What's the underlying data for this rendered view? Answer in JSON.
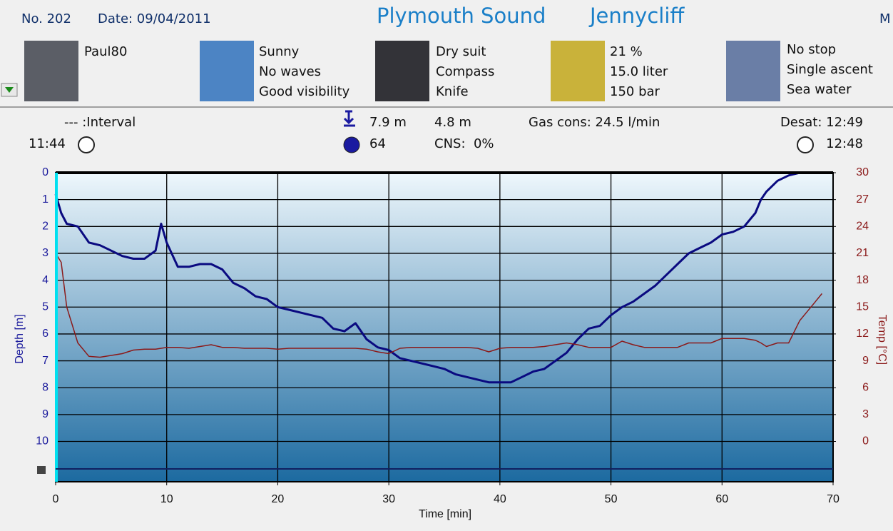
{
  "header": {
    "number": "No. 202",
    "date": "Date: 09/04/2011",
    "site": "Plymouth Sound",
    "location": "Jennycliff",
    "cut_text": "M"
  },
  "info": {
    "diver": [
      "Paul80"
    ],
    "conditions": [
      "Sunny",
      "No waves",
      "Good visibility"
    ],
    "equipment": [
      "Dry suit",
      "Compass",
      "Knife"
    ],
    "gas": [
      "21 %",
      "15.0 liter",
      "150 bar"
    ],
    "profile": [
      "No stop",
      "Single ascent",
      "Sea water"
    ]
  },
  "stats": {
    "interval": "--- :Interval",
    "entry_time": "11:44",
    "max_depth": "7.9 m",
    "duration": "64",
    "avg_depth": "4.8 m",
    "cns": "CNS:  0%",
    "gas_cons": "Gas cons: 24.5 l/min",
    "desat": "Desat: 12:49",
    "exit_time": "12:48"
  },
  "chart_data": {
    "type": "line",
    "xlabel": "Time [min]",
    "ylabel": "Depth [m]",
    "y2label": "Temp [°C]",
    "x": [
      0,
      0.5,
      1,
      2,
      3,
      4,
      5,
      6,
      7,
      8,
      9,
      9.5,
      10,
      11,
      12,
      13,
      14,
      15,
      16,
      17,
      18,
      19,
      20,
      21,
      22,
      23,
      24,
      25,
      26,
      27,
      28,
      29,
      30,
      31,
      32,
      33,
      34,
      35,
      36,
      37,
      38,
      39,
      40,
      41,
      42,
      43,
      44,
      45,
      46,
      47,
      48,
      49,
      50,
      51,
      52,
      53,
      54,
      55,
      56,
      57,
      58,
      59,
      60,
      61,
      62,
      63,
      63.5,
      64,
      65,
      66,
      67,
      68,
      69
    ],
    "series": [
      {
        "color": "#0a0a80",
        "values": [
          0.8,
          1.5,
          1.9,
          2.0,
          2.6,
          2.7,
          2.9,
          3.1,
          3.2,
          3.2,
          2.9,
          1.9,
          2.6,
          3.5,
          3.5,
          3.4,
          3.4,
          3.6,
          4.1,
          4.3,
          4.6,
          4.7,
          5.0,
          5.1,
          5.2,
          5.3,
          5.4,
          5.8,
          5.9,
          5.6,
          6.2,
          6.5,
          6.6,
          6.9,
          7.0,
          7.1,
          7.2,
          7.3,
          7.5,
          7.6,
          7.7,
          7.8,
          7.8,
          7.8,
          7.6,
          7.4,
          7.3,
          7.0,
          6.7,
          6.2,
          5.8,
          5.7,
          5.3,
          5.0,
          4.8,
          4.5,
          4.2,
          3.8,
          3.4,
          3.0,
          2.8,
          2.6,
          2.3,
          2.2,
          2.0,
          1.5,
          1.0,
          0.7,
          0.3,
          0.1,
          0.0,
          0.0,
          0.0
        ]
      },
      {
        "color": "#8b1a1a",
        "axis": "y2",
        "values": [
          21,
          20,
          15,
          11,
          9.5,
          9.4,
          9.6,
          9.8,
          10.2,
          10.3,
          10.3,
          10.4,
          10.5,
          10.5,
          10.4,
          10.6,
          10.8,
          10.5,
          10.5,
          10.4,
          10.4,
          10.4,
          10.3,
          10.4,
          10.4,
          10.4,
          10.4,
          10.4,
          10.4,
          10.4,
          10.3,
          10.0,
          9.8,
          10.4,
          10.5,
          10.5,
          10.5,
          10.5,
          10.5,
          10.5,
          10.4,
          10.0,
          10.4,
          10.5,
          10.5,
          10.5,
          10.6,
          10.8,
          11.0,
          10.8,
          10.5,
          10.5,
          10.5,
          11.2,
          10.8,
          10.5,
          10.5,
          10.5,
          10.5,
          11.0,
          11.0,
          11.0,
          11.5,
          11.5,
          11.5,
          11.3,
          11.0,
          10.6,
          11.0,
          11.0,
          13.5,
          15.0,
          16.5
        ]
      }
    ],
    "xlim": [
      0,
      70
    ],
    "xticks": [
      0,
      10,
      20,
      30,
      40,
      50,
      60,
      70
    ],
    "ylim": [
      11.5,
      0
    ],
    "yticks": [
      0,
      1,
      2,
      3,
      4,
      5,
      6,
      7,
      8,
      9,
      10
    ],
    "y2lim": [
      -4.5,
      30
    ],
    "y2ticks": [
      30,
      27,
      24,
      21,
      18,
      15,
      12,
      9,
      6,
      3,
      0
    ],
    "ycolor": "#1a1a9c",
    "y2color": "#8b1a1a",
    "grid": true
  }
}
